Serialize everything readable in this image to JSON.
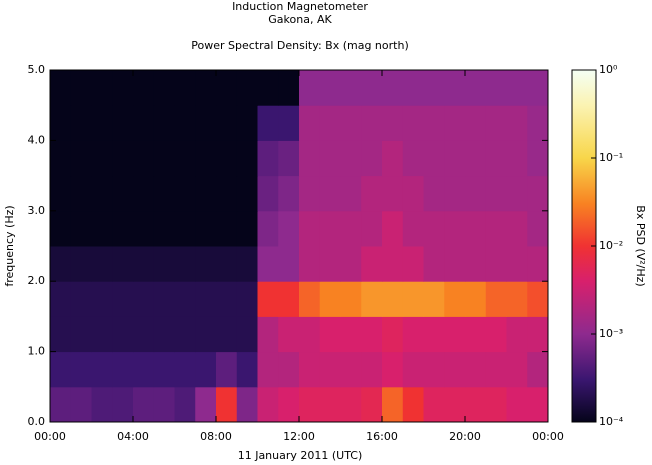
{
  "chart_data": {
    "type": "heatmap",
    "title": "Induction Magnetometer",
    "subtitle": "Gakona, AK",
    "plot_title": "Power Spectral Density: Bx (mag north)",
    "x_label": "11 January 2011 (UTC)",
    "y_label": "frequency (Hz)",
    "colorbar_label": "Bx PSD (V²/Hz)",
    "xbins": [
      0,
      1,
      2,
      3,
      4,
      5,
      6,
      7,
      8,
      9,
      10,
      11,
      12,
      13,
      14,
      15,
      16,
      17,
      18,
      19,
      20,
      21,
      22,
      23,
      24
    ],
    "ybins": [
      0,
      0.5,
      1,
      1.5,
      2,
      2.5,
      3,
      3.5,
      4,
      4.5,
      5
    ],
    "z": [
      [
        0.0005,
        0.0005,
        0.0004,
        0.0004,
        0.0005,
        0.0005,
        0.0004,
        0.001,
        0.01,
        0.0008,
        0.003,
        0.004,
        0.005,
        0.005,
        0.005,
        0.006,
        0.02,
        0.01,
        0.005,
        0.005,
        0.005,
        0.005,
        0.004,
        0.004
      ],
      [
        0.0003,
        0.0003,
        0.0003,
        0.0003,
        0.0003,
        0.0003,
        0.0003,
        0.0003,
        0.0005,
        0.0003,
        0.002,
        0.002,
        0.003,
        0.003,
        0.003,
        0.003,
        0.004,
        0.003,
        0.003,
        0.003,
        0.003,
        0.003,
        0.003,
        0.002
      ],
      [
        0.0002,
        0.0002,
        0.0002,
        0.0002,
        0.0002,
        0.0002,
        0.0002,
        0.0002,
        0.0002,
        0.0002,
        0.002,
        0.003,
        0.003,
        0.004,
        0.004,
        0.004,
        0.005,
        0.004,
        0.004,
        0.004,
        0.004,
        0.004,
        0.003,
        0.003
      ],
      [
        0.0002,
        0.0002,
        0.0002,
        0.0002,
        0.0002,
        0.0002,
        0.0002,
        0.0002,
        0.0002,
        0.0002,
        0.01,
        0.01,
        0.02,
        0.03,
        0.03,
        0.04,
        0.04,
        0.04,
        0.04,
        0.03,
        0.03,
        0.02,
        0.02,
        0.015
      ],
      [
        0.00015,
        0.00015,
        0.00015,
        0.00015,
        0.00015,
        0.00015,
        0.00015,
        0.00015,
        0.00015,
        0.00015,
        0.001,
        0.001,
        0.002,
        0.002,
        0.002,
        0.003,
        0.003,
        0.003,
        0.002,
        0.002,
        0.002,
        0.002,
        0.002,
        0.002
      ],
      [
        0.0001,
        0.0001,
        0.0001,
        0.0001,
        0.0001,
        0.0001,
        0.0001,
        0.0001,
        0.0001,
        0.0001,
        0.0008,
        0.001,
        0.002,
        0.002,
        0.002,
        0.002,
        0.003,
        0.002,
        0.002,
        0.002,
        0.002,
        0.002,
        0.002,
        0.0015
      ],
      [
        0.0001,
        0.0001,
        0.0001,
        0.0001,
        0.0001,
        0.0001,
        0.0001,
        0.0001,
        0.0001,
        0.0001,
        0.0006,
        0.0008,
        0.0015,
        0.0015,
        0.0015,
        0.002,
        0.002,
        0.002,
        0.0015,
        0.0015,
        0.0015,
        0.0015,
        0.0015,
        0.0015
      ],
      [
        0.0001,
        0.0001,
        0.0001,
        0.0001,
        0.0001,
        0.0001,
        0.0001,
        0.0001,
        0.0001,
        0.0001,
        0.0005,
        0.0006,
        0.0015,
        0.0015,
        0.0015,
        0.0015,
        0.002,
        0.0015,
        0.0015,
        0.0015,
        0.0015,
        0.0015,
        0.0015,
        0.0012
      ],
      [
        0.0001,
        0.0001,
        0.0001,
        0.0001,
        0.0001,
        0.0001,
        0.0001,
        0.0001,
        0.0001,
        0.0001,
        0.0003,
        0.0003,
        0.0015,
        0.0015,
        0.0015,
        0.0015,
        0.0015,
        0.0015,
        0.0015,
        0.0015,
        0.0015,
        0.0015,
        0.0015,
        0.0012
      ],
      [
        0.0001,
        0.0001,
        0.0001,
        0.0001,
        0.0001,
        0.0001,
        0.0001,
        0.0001,
        0.0001,
        0.0001,
        0.0001,
        0.0001,
        0.001,
        0.001,
        0.001,
        0.001,
        0.001,
        0.001,
        0.001,
        0.001,
        0.001,
        0.001,
        0.001,
        0.001
      ]
    ],
    "xlim": [
      0,
      24
    ],
    "xticks": [
      {
        "value": 0,
        "label": "00:00"
      },
      {
        "value": 4,
        "label": "04:00"
      },
      {
        "value": 8,
        "label": "08:00"
      },
      {
        "value": 12,
        "label": "12:00"
      },
      {
        "value": 16,
        "label": "16:00"
      },
      {
        "value": 20,
        "label": "20:00"
      },
      {
        "value": 24,
        "label": "00:00"
      }
    ],
    "ylim": [
      0,
      5
    ],
    "yticks": [
      {
        "value": 0,
        "label": "0.0"
      },
      {
        "value": 1,
        "label": "1.0"
      },
      {
        "value": 2,
        "label": "2.0"
      },
      {
        "value": 3,
        "label": "3.0"
      },
      {
        "value": 4,
        "label": "4.0"
      },
      {
        "value": 5,
        "label": "5.0"
      }
    ],
    "zscale": "log",
    "zlim": [
      0.0001,
      1
    ],
    "zticks": [
      {
        "value": 0.0001,
        "label": "10⁻⁴"
      },
      {
        "value": 0.001,
        "label": "10⁻³"
      },
      {
        "value": 0.01,
        "label": "10⁻²"
      },
      {
        "value": 0.1,
        "label": "10⁻¹"
      },
      {
        "value": 1,
        "label": "10⁰"
      }
    ]
  }
}
